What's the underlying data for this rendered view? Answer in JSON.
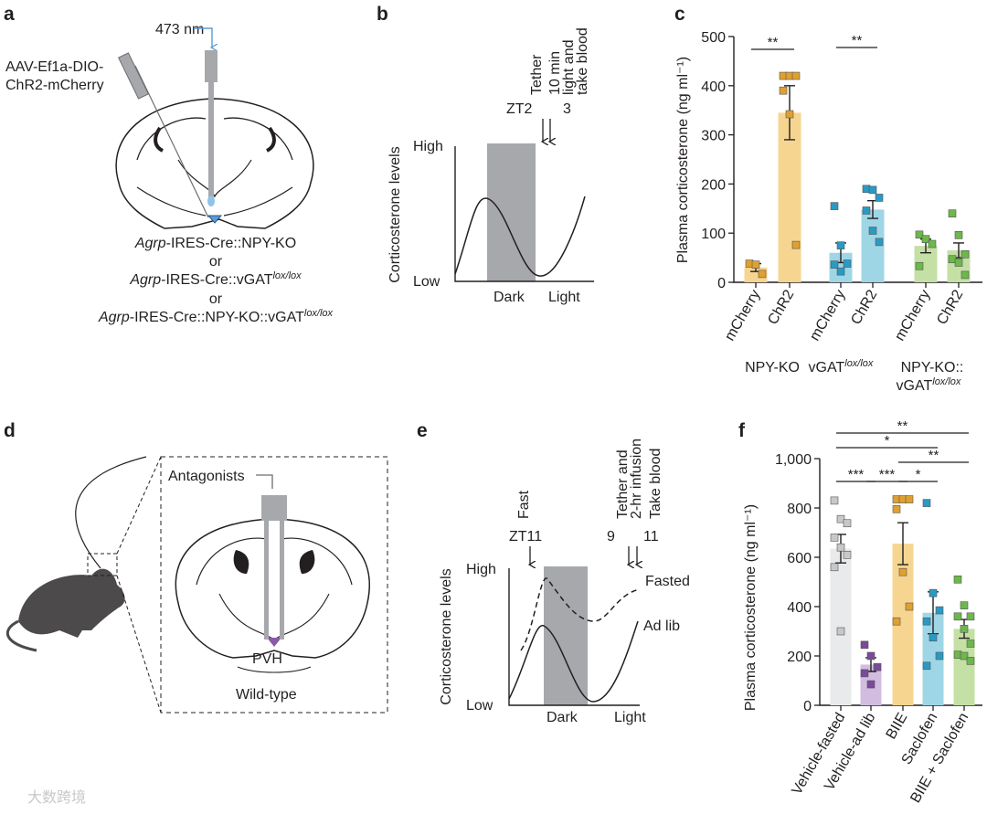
{
  "panels": {
    "a": {
      "label": "a",
      "wavelength": "473 nm",
      "virus_line1": "AAV-Ef1a-DIO-",
      "virus_line2": "ChR2-mCherry",
      "genotype1_gene": "Agrp",
      "genotype1_rest": "-IRES-Cre::NPY-KO",
      "or1": "or",
      "genotype2_gene": "Agrp",
      "genotype2_rest": "-IRES-Cre::vGAT",
      "genotype2_sup": "lox/lox",
      "or2": "or",
      "genotype3_gene": "Agrp",
      "genotype3_rest": "-IRES-Cre::NPY-KO::vGAT",
      "genotype3_sup": "lox/lox"
    },
    "b": {
      "label": "b",
      "tether": "Tether",
      "zt2": "ZT2",
      "three": "3",
      "note_line1": "10 min",
      "note_line2": "light and",
      "note_line3": "take blood",
      "ylabel": "Corticosterone levels",
      "high": "High",
      "low": "Low",
      "dark": "Dark",
      "light": "Light"
    },
    "d": {
      "label": "d",
      "antagonists": "Antagonists",
      "pvh": "PVH",
      "wildtype": "Wild-type"
    },
    "e": {
      "label": "e",
      "fast": "Fast",
      "zt11": "ZT11",
      "nine": "9",
      "eleven": "11",
      "tether_line1": "Tether and",
      "tether_line2": "2-hr infusion",
      "take_blood": "Take blood",
      "ylabel": "Corticosterone levels",
      "high": "High",
      "low": "Low",
      "dark": "Dark",
      "light": "Light",
      "fasted": "Fasted",
      "adlib": "Ad lib"
    },
    "c": {
      "label": "c"
    },
    "f": {
      "label": "f"
    }
  },
  "watermark": "大数跨境",
  "chart_data": [
    {
      "type": "bar",
      "panel": "c",
      "ylabel": "Plasma corticosterone (ng ml⁻¹)",
      "ylim": [
        0,
        500
      ],
      "yticks": [
        "0",
        "100",
        "200",
        "300",
        "400",
        "500"
      ],
      "categories": [
        "mCherry",
        "ChR2",
        "mCherry",
        "ChR2",
        "mCherry",
        "ChR2"
      ],
      "groups": [
        {
          "name": "NPY-KO",
          "sup": ""
        },
        {
          "name": "vGAT",
          "sup": "lox/lox"
        },
        {
          "name": "NPY-KO::",
          "name2": "vGAT",
          "sup": "lox/lox"
        }
      ],
      "colors": [
        "#f5d590",
        "#f5d590",
        "#9fd6e6",
        "#9fd6e6",
        "#c4e0a4",
        "#c4e0a4"
      ],
      "point_colors": [
        "#e0a030",
        "#e0a030",
        "#2a9ac4",
        "#2a9ac4",
        "#6cb84a",
        "#6cb84a"
      ],
      "values": [
        30,
        345,
        60,
        148,
        74,
        65
      ],
      "sem": [
        8,
        55,
        20,
        18,
        14,
        15
      ],
      "points": [
        [
          38,
          36,
          17
        ],
        [
          420,
          420,
          420,
          390,
          342,
          76
        ],
        [
          155,
          75,
          38,
          36,
          22
        ],
        [
          190,
          188,
          172,
          146,
          105,
          82
        ],
        [
          97,
          88,
          78,
          33
        ],
        [
          140,
          96,
          57,
          47,
          40,
          15
        ]
      ],
      "significance": [
        {
          "between": [
            0,
            1
          ],
          "label": "**"
        },
        {
          "between": [
            2,
            3
          ],
          "label": "**"
        }
      ]
    },
    {
      "type": "bar",
      "panel": "f",
      "ylabel": "Plasma corticosterone (ng ml⁻¹)",
      "ylim": [
        0,
        1000
      ],
      "yticks": [
        "0",
        "200",
        "400",
        "600",
        "800",
        "1,000"
      ],
      "categories": [
        "Vehicle-fasted",
        "Vehicle-ad lib",
        "BIIE",
        "Saclofen",
        "BIIE + Saclofen"
      ],
      "colors": [
        "#e9eaec",
        "#d2bde0",
        "#f5d590",
        "#9fd6e6",
        "#c4e0a4"
      ],
      "point_colors": [
        "#c8c8c8",
        "#7a4a9a",
        "#e0a030",
        "#2a9ac4",
        "#6cb84a"
      ],
      "values": [
        635,
        165,
        655,
        375,
        310
      ],
      "sem": [
        58,
        28,
        85,
        85,
        38
      ],
      "points": [
        [
          830,
          755,
          738,
          680,
          640,
          610,
          560,
          300
        ],
        [
          245,
          200,
          155,
          130,
          85
        ],
        [
          835,
          835,
          835,
          795,
          540,
          400,
          340
        ],
        [
          820,
          455,
          385,
          340,
          275,
          200,
          160
        ],
        [
          510,
          405,
          360,
          360,
          310,
          250,
          205,
          200,
          180
        ]
      ],
      "significance": [
        {
          "between": [
            0,
            1
          ],
          "label": "***"
        },
        {
          "between": [
            1,
            2
          ],
          "label": "***"
        },
        {
          "between": [
            2,
            3
          ],
          "label": "*"
        },
        {
          "between": [
            2,
            4
          ],
          "label": "**"
        },
        {
          "between": [
            0,
            3
          ],
          "label": "*"
        },
        {
          "between": [
            0,
            4
          ],
          "label": "**"
        }
      ]
    }
  ]
}
